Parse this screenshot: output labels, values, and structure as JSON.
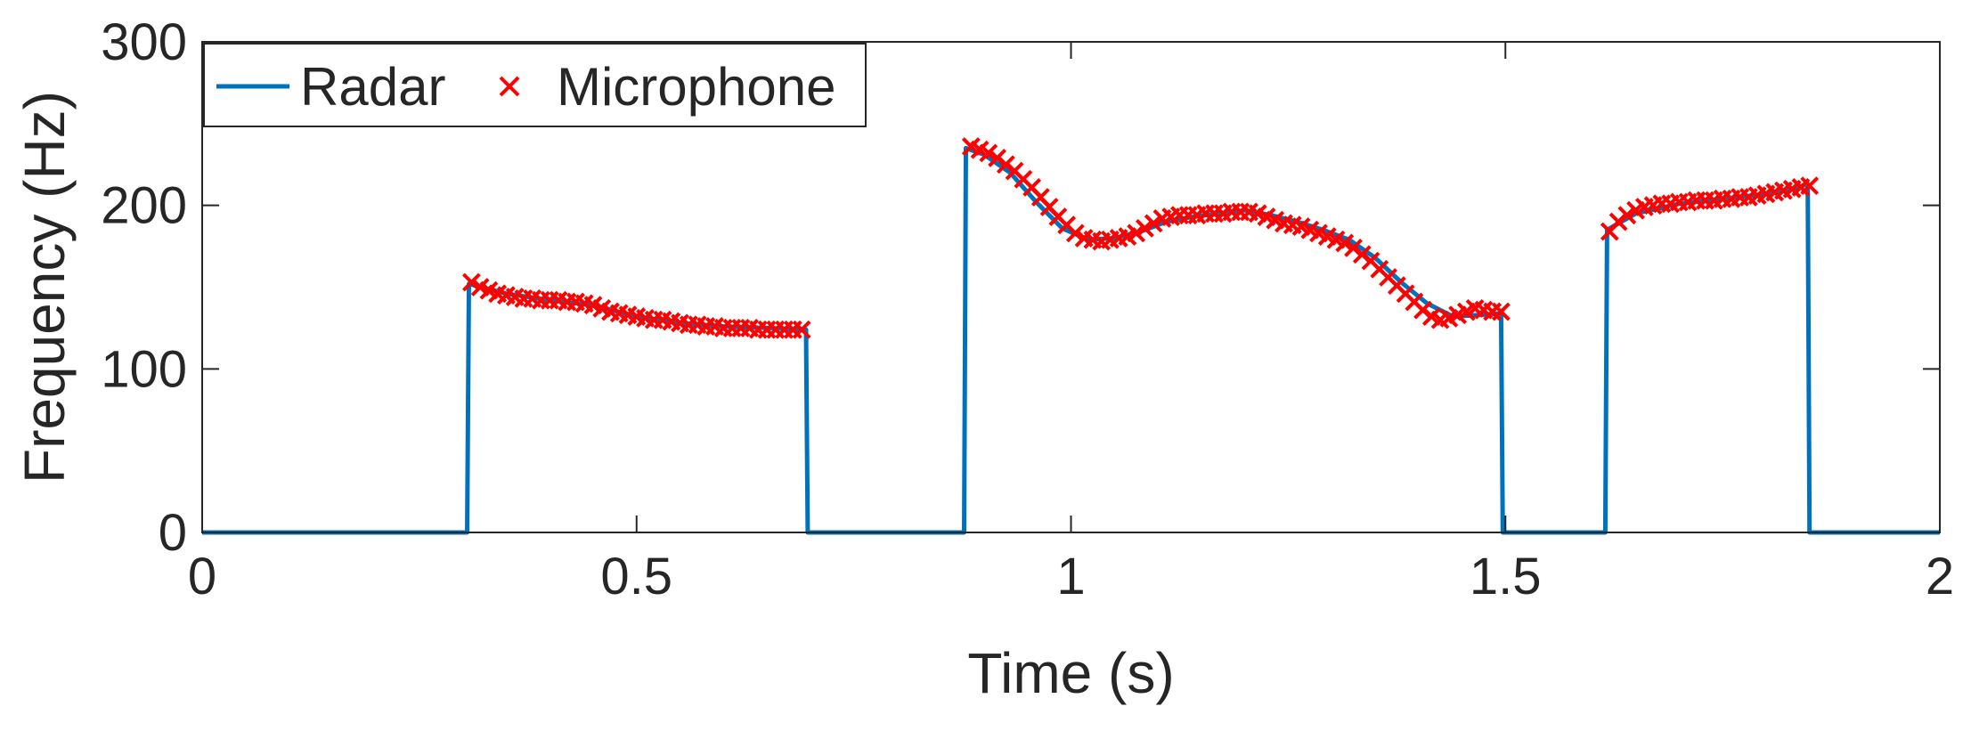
{
  "chart_data": {
    "type": "line",
    "title": "",
    "xlabel": "Time (s)",
    "ylabel": "Frequency (Hz)",
    "xlim": [
      0,
      2
    ],
    "ylim": [
      0,
      300
    ],
    "xticks": [
      0,
      0.5,
      1,
      1.5,
      2
    ],
    "xtick_labels": [
      "0",
      "0.5",
      "1",
      "1.5",
      "2"
    ],
    "yticks": [
      0,
      100,
      200,
      300
    ],
    "ytick_labels": [
      "0",
      "100",
      "200",
      "300"
    ],
    "grid": false,
    "legend": {
      "position": "top-left",
      "entries": [
        "Radar",
        "Microphone"
      ]
    },
    "colors": {
      "radar": "#0072BD",
      "microphone": "#FF0000",
      "axis": "#262626"
    },
    "series": [
      {
        "name": "Radar",
        "style": "line",
        "x": [
          0,
          0.305,
          0.307,
          0.35,
          0.4,
          0.45,
          0.5,
          0.55,
          0.6,
          0.65,
          0.695,
          0.697,
          0.7,
          0.877,
          0.879,
          0.9,
          0.93,
          0.96,
          0.99,
          1.02,
          1.05,
          1.08,
          1.11,
          1.14,
          1.17,
          1.2,
          1.23,
          1.26,
          1.29,
          1.32,
          1.35,
          1.38,
          1.41,
          1.44,
          1.47,
          1.495,
          1.497,
          1.6,
          1.615,
          1.617,
          1.65,
          1.7,
          1.75,
          1.8,
          1.83,
          1.848,
          1.85,
          2.0
        ],
        "y": [
          0,
          0,
          152,
          146,
          142,
          139,
          132,
          128,
          126,
          125,
          124,
          0,
          0,
          0,
          235,
          231,
          220,
          202,
          186,
          179,
          180,
          184,
          190,
          193,
          195,
          197,
          194,
          190,
          185,
          179,
          168,
          153,
          140,
          132,
          133,
          134,
          0,
          0,
          0,
          185,
          195,
          201,
          204,
          207,
          210,
          213,
          0,
          0
        ]
      },
      {
        "name": "Microphone",
        "style": "marker-x",
        "x": [
          0.31,
          0.32,
          0.33,
          0.34,
          0.35,
          0.36,
          0.37,
          0.38,
          0.39,
          0.4,
          0.41,
          0.42,
          0.43,
          0.44,
          0.45,
          0.46,
          0.47,
          0.48,
          0.49,
          0.5,
          0.51,
          0.52,
          0.53,
          0.54,
          0.55,
          0.56,
          0.57,
          0.58,
          0.59,
          0.6,
          0.61,
          0.62,
          0.63,
          0.64,
          0.65,
          0.66,
          0.67,
          0.68,
          0.69,
          0.885,
          0.895,
          0.905,
          0.915,
          0.925,
          0.935,
          0.945,
          0.955,
          0.965,
          0.975,
          0.985,
          0.995,
          1.005,
          1.015,
          1.025,
          1.035,
          1.045,
          1.055,
          1.065,
          1.075,
          1.085,
          1.095,
          1.105,
          1.115,
          1.125,
          1.135,
          1.145,
          1.155,
          1.165,
          1.175,
          1.185,
          1.195,
          1.205,
          1.215,
          1.225,
          1.235,
          1.245,
          1.255,
          1.265,
          1.275,
          1.285,
          1.295,
          1.305,
          1.315,
          1.325,
          1.335,
          1.345,
          1.355,
          1.365,
          1.375,
          1.385,
          1.395,
          1.405,
          1.415,
          1.425,
          1.435,
          1.445,
          1.455,
          1.465,
          1.475,
          1.485,
          1.495,
          1.62,
          1.63,
          1.64,
          1.65,
          1.66,
          1.67,
          1.68,
          1.69,
          1.7,
          1.71,
          1.72,
          1.73,
          1.74,
          1.75,
          1.76,
          1.77,
          1.78,
          1.79,
          1.8,
          1.81,
          1.82,
          1.83,
          1.84,
          1.85
        ],
        "y": [
          153,
          150,
          148,
          146,
          145,
          144,
          143,
          143,
          142,
          142,
          142,
          141,
          141,
          140,
          139,
          137,
          135,
          134,
          133,
          132,
          131,
          130,
          130,
          129,
          128,
          127,
          127,
          126,
          126,
          125,
          125,
          125,
          125,
          124,
          124,
          124,
          124,
          124,
          124,
          236,
          234,
          232,
          229,
          225,
          221,
          216,
          211,
          205,
          199,
          193,
          188,
          183,
          180,
          179,
          178,
          179,
          180,
          181,
          183,
          186,
          189,
          192,
          193,
          194,
          194,
          194,
          195,
          195,
          195,
          196,
          196,
          196,
          195,
          193,
          191,
          189,
          188,
          187,
          185,
          183,
          181,
          179,
          177,
          174,
          170,
          166,
          161,
          156,
          151,
          146,
          141,
          136,
          132,
          130,
          131,
          133,
          135,
          137,
          136,
          135,
          135,
          184,
          190,
          194,
          197,
          199,
          200,
          201,
          201,
          202,
          202,
          203,
          203,
          203,
          204,
          204,
          205,
          205,
          206,
          207,
          208,
          209,
          210,
          211,
          212
        ]
      }
    ]
  }
}
